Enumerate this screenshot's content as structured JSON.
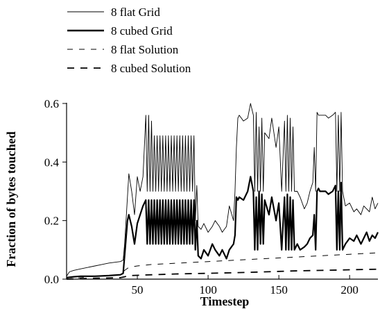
{
  "chart_data": {
    "type": "line",
    "title": "",
    "xlabel": "Timestep",
    "ylabel": "Fraction of bytes touched",
    "xlim": [
      0,
      220
    ],
    "ylim": [
      0,
      0.6
    ],
    "x_ticks": [
      50,
      100,
      150,
      200
    ],
    "y_ticks": [
      0.0,
      0.2,
      0.4,
      0.6
    ],
    "x_tick_labels": [
      "50",
      "100",
      "150",
      "200"
    ],
    "y_tick_labels": [
      "0.0",
      "0.2",
      "0.4",
      "0.6"
    ],
    "grid": false,
    "legend_position": "top-left, outside plot",
    "series": [
      {
        "name": "8 flat Grid",
        "style": "thin-solid",
        "x": [
          0,
          2,
          5,
          10,
          20,
          30,
          38,
          40,
          41,
          43,
          44,
          46,
          48,
          50,
          52,
          54,
          56,
          57,
          58,
          59,
          60,
          61,
          62,
          63,
          64,
          65,
          66,
          67,
          68,
          69,
          70,
          71,
          72,
          73,
          74,
          75,
          76,
          77,
          78,
          79,
          80,
          81,
          82,
          83,
          84,
          85,
          86,
          87,
          88,
          89,
          90,
          91,
          92,
          93,
          95,
          97,
          100,
          103,
          105,
          108,
          110,
          113,
          115,
          118,
          119,
          120,
          121,
          122,
          125,
          128,
          130,
          132,
          133,
          134,
          135,
          136,
          137,
          138,
          139,
          140,
          143,
          145,
          148,
          150,
          152,
          154,
          155,
          156,
          157,
          158,
          159,
          160,
          161,
          163,
          165,
          168,
          170,
          172,
          174,
          175,
          176,
          177,
          178,
          179,
          180,
          183,
          185,
          188,
          190,
          191,
          192,
          193,
          194,
          195,
          197,
          200,
          203,
          205,
          208,
          210,
          212,
          214,
          216,
          218,
          220
        ],
        "values": [
          0.01,
          0.025,
          0.03,
          0.035,
          0.045,
          0.055,
          0.06,
          0.065,
          0.12,
          0.28,
          0.36,
          0.3,
          0.22,
          0.35,
          0.3,
          0.35,
          0.56,
          0.3,
          0.56,
          0.3,
          0.54,
          0.3,
          0.49,
          0.3,
          0.49,
          0.3,
          0.49,
          0.3,
          0.49,
          0.3,
          0.49,
          0.3,
          0.49,
          0.3,
          0.49,
          0.3,
          0.49,
          0.3,
          0.49,
          0.3,
          0.49,
          0.3,
          0.49,
          0.3,
          0.49,
          0.3,
          0.49,
          0.3,
          0.49,
          0.3,
          0.49,
          0.2,
          0.32,
          0.18,
          0.17,
          0.19,
          0.16,
          0.18,
          0.2,
          0.18,
          0.16,
          0.18,
          0.25,
          0.2,
          0.3,
          0.45,
          0.55,
          0.56,
          0.54,
          0.55,
          0.6,
          0.56,
          0.3,
          0.57,
          0.3,
          0.52,
          0.3,
          0.55,
          0.3,
          0.5,
          0.48,
          0.55,
          0.45,
          0.52,
          0.3,
          0.54,
          0.3,
          0.56,
          0.3,
          0.55,
          0.3,
          0.52,
          0.3,
          0.3,
          0.28,
          0.24,
          0.26,
          0.3,
          0.33,
          0.45,
          0.3,
          0.57,
          0.56,
          0.56,
          0.56,
          0.56,
          0.55,
          0.56,
          0.57,
          0.3,
          0.56,
          0.3,
          0.57,
          0.3,
          0.25,
          0.26,
          0.23,
          0.24,
          0.22,
          0.25,
          0.24,
          0.23,
          0.28,
          0.24,
          0.26
        ]
      },
      {
        "name": "8 cubed Grid",
        "style": "thick-solid",
        "x": [
          0,
          5,
          10,
          20,
          30,
          38,
          40,
          41,
          43,
          44,
          46,
          48,
          50,
          52,
          54,
          56,
          57,
          58,
          59,
          60,
          61,
          62,
          63,
          64,
          65,
          66,
          67,
          68,
          69,
          70,
          71,
          72,
          73,
          74,
          75,
          76,
          77,
          78,
          79,
          80,
          81,
          82,
          83,
          84,
          85,
          86,
          87,
          88,
          89,
          90,
          91,
          92,
          93,
          95,
          97,
          100,
          103,
          105,
          108,
          110,
          113,
          115,
          118,
          119,
          120,
          121,
          122,
          125,
          128,
          130,
          132,
          133,
          134,
          135,
          136,
          137,
          138,
          139,
          140,
          143,
          145,
          148,
          150,
          152,
          154,
          155,
          156,
          157,
          158,
          159,
          160,
          161,
          163,
          165,
          168,
          170,
          172,
          174,
          175,
          176,
          177,
          178,
          179,
          180,
          183,
          185,
          188,
          190,
          191,
          192,
          193,
          194,
          195,
          197,
          200,
          203,
          205,
          208,
          210,
          212,
          214,
          216,
          218,
          220
        ],
        "values": [
          0.005,
          0.008,
          0.01,
          0.01,
          0.012,
          0.015,
          0.02,
          0.08,
          0.2,
          0.22,
          0.18,
          0.12,
          0.19,
          0.22,
          0.25,
          0.27,
          0.12,
          0.27,
          0.12,
          0.27,
          0.12,
          0.27,
          0.12,
          0.27,
          0.12,
          0.27,
          0.12,
          0.27,
          0.12,
          0.27,
          0.12,
          0.27,
          0.12,
          0.27,
          0.12,
          0.27,
          0.12,
          0.27,
          0.12,
          0.27,
          0.12,
          0.27,
          0.12,
          0.27,
          0.12,
          0.27,
          0.12,
          0.27,
          0.12,
          0.27,
          0.1,
          0.2,
          0.08,
          0.07,
          0.1,
          0.08,
          0.12,
          0.1,
          0.08,
          0.1,
          0.07,
          0.1,
          0.12,
          0.15,
          0.28,
          0.27,
          0.28,
          0.27,
          0.3,
          0.35,
          0.3,
          0.1,
          0.28,
          0.1,
          0.3,
          0.12,
          0.29,
          0.12,
          0.27,
          0.22,
          0.28,
          0.2,
          0.26,
          0.1,
          0.28,
          0.1,
          0.29,
          0.1,
          0.28,
          0.1,
          0.27,
          0.1,
          0.12,
          0.1,
          0.11,
          0.12,
          0.14,
          0.15,
          0.22,
          0.1,
          0.3,
          0.31,
          0.3,
          0.3,
          0.3,
          0.29,
          0.3,
          0.32,
          0.1,
          0.3,
          0.1,
          0.33,
          0.1,
          0.12,
          0.14,
          0.13,
          0.15,
          0.12,
          0.14,
          0.16,
          0.13,
          0.15,
          0.14,
          0.16
        ]
      },
      {
        "name": "8 flat Solution",
        "style": "thin-dashed",
        "x": [
          0,
          20,
          38,
          41,
          44,
          50,
          60,
          80,
          100,
          120,
          140,
          160,
          180,
          200,
          220
        ],
        "values": [
          0.0,
          0.01,
          0.015,
          0.03,
          0.04,
          0.045,
          0.05,
          0.055,
          0.06,
          0.065,
          0.07,
          0.075,
          0.08,
          0.085,
          0.09
        ]
      },
      {
        "name": "8 cubed Solution",
        "style": "thick-dashed",
        "x": [
          0,
          20,
          38,
          41,
          44,
          60,
          80,
          100,
          120,
          140,
          160,
          180,
          200,
          220
        ],
        "values": [
          0.0,
          0.003,
          0.005,
          0.008,
          0.012,
          0.015,
          0.018,
          0.02,
          0.022,
          0.025,
          0.028,
          0.03,
          0.032,
          0.034
        ]
      }
    ]
  }
}
